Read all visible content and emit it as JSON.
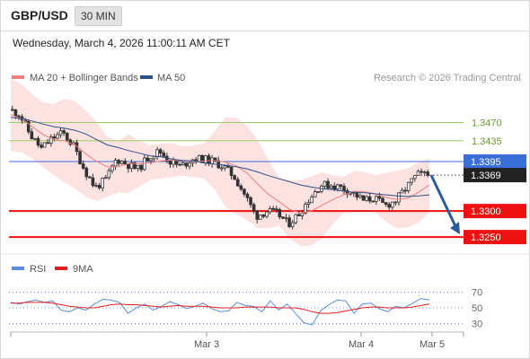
{
  "header": {
    "symbol": "GBP/USD",
    "timeframe": "30 MIN",
    "datetime": "Wednesday, March 4, 2026 11:00:11 AM CET"
  },
  "legend": {
    "ma20": "MA 20 + Bollinger Bands",
    "ma50": "MA 50",
    "credit": "Research © 2026 Trading Central",
    "rsi": "RSI",
    "rsi_ma": "9MA"
  },
  "colors": {
    "ma20": "#f08080",
    "ma50": "#2c4f86",
    "bollinger_fill": "#fde2e2",
    "candle": "#333333",
    "resistance": "#9ccc65",
    "resistance_label": "#6a9a2e",
    "pivot": "#3b6fd8",
    "support": "#ee1111",
    "current_price_bg": "#222222",
    "arrow": "#2b5b9e",
    "rsi": "#5b8dd9",
    "rsi_ma": "#e02020"
  },
  "chart_data": [
    {
      "type": "candlestick",
      "title": "GBP/USD",
      "timeframe": "30 MIN",
      "x_ticks": [
        "Mar 3",
        "Mar 4",
        "Mar 5"
      ],
      "ylim": [
        1.3233,
        1.3495
      ],
      "levels": [
        {
          "kind": "resistance",
          "value": 1.347,
          "label": "1.3470"
        },
        {
          "kind": "resistance",
          "value": 1.3435,
          "label": "1.3435"
        },
        {
          "kind": "pivot",
          "value": 1.3395,
          "label": "1.3395"
        },
        {
          "kind": "support",
          "value": 1.33,
          "label": "1.3300"
        },
        {
          "kind": "support",
          "value": 1.325,
          "label": "1.3250"
        }
      ],
      "current_price": {
        "value": 1.3369,
        "label": "1.3369"
      },
      "projection": {
        "from": 1.3369,
        "to": 1.325,
        "direction": "down"
      },
      "close_path": [
        1.3495,
        1.3485,
        1.3445,
        1.342,
        1.344,
        1.345,
        1.3425,
        1.338,
        1.3345,
        1.336,
        1.34,
        1.339,
        1.338,
        1.3405,
        1.3415,
        1.3395,
        1.3385,
        1.34,
        1.34,
        1.3395,
        1.3385,
        1.3365,
        1.333,
        1.329,
        1.33,
        1.3295,
        1.3275,
        1.3295,
        1.3325,
        1.335,
        1.335,
        1.3345,
        1.3335,
        1.332,
        1.3325,
        1.331,
        1.332,
        1.3345,
        1.337,
        1.3369
      ],
      "series": [
        {
          "name": "MA 20 + Bollinger Bands",
          "role": "ma20",
          "values": [
            1.3485,
            1.3478,
            1.3462,
            1.3447,
            1.3437,
            1.3435,
            1.3427,
            1.341,
            1.3395,
            1.3385,
            1.3385,
            1.3391,
            1.3391,
            1.3393,
            1.3396,
            1.3398,
            1.3396,
            1.3395,
            1.3396,
            1.3397,
            1.3394,
            1.3387,
            1.3373,
            1.3352,
            1.3332,
            1.3318,
            1.3303,
            1.3296,
            1.33,
            1.3311,
            1.3322,
            1.3331,
            1.3338,
            1.3337,
            1.3333,
            1.3326,
            1.3322,
            1.3325,
            1.3336,
            1.335
          ]
        },
        {
          "name": "MA 50",
          "role": "ma50",
          "values": [
            1.348,
            1.3478,
            1.3473,
            1.3467,
            1.3462,
            1.3459,
            1.3455,
            1.3448,
            1.3437,
            1.3427,
            1.3422,
            1.3416,
            1.3411,
            1.3406,
            1.3404,
            1.34,
            1.3397,
            1.3396,
            1.3393,
            1.339,
            1.3388,
            1.3385,
            1.3381,
            1.3375,
            1.3368,
            1.3362,
            1.3356,
            1.335,
            1.3346,
            1.3343,
            1.3341,
            1.3338,
            1.3336,
            1.3335,
            1.3333,
            1.3331,
            1.3329,
            1.3328,
            1.3329,
            1.3331
          ]
        }
      ]
    },
    {
      "type": "line",
      "title": "RSI",
      "x_ticks": [
        "Mar 3",
        "Mar 4",
        "Mar 5"
      ],
      "ylim": [
        20,
        80
      ],
      "y_ticks": [
        70,
        50,
        30
      ],
      "series": [
        {
          "name": "RSI",
          "role": "rsi",
          "values": [
            57,
            55,
            58,
            60,
            57,
            59,
            47,
            45,
            50,
            47,
            55,
            61,
            60,
            57,
            43,
            50,
            55,
            47,
            52,
            58,
            54,
            49,
            52,
            56,
            49,
            45,
            46,
            57,
            53,
            52,
            45,
            59,
            47,
            55,
            43,
            31,
            28,
            46,
            54,
            60,
            59,
            43,
            55,
            56,
            49,
            45,
            52,
            50,
            56,
            62,
            60
          ]
        },
        {
          "name": "9MA",
          "role": "rsi_ma",
          "values": [
            56,
            56,
            57,
            57,
            57,
            56,
            54,
            52,
            51,
            50,
            50,
            52,
            54,
            55,
            54,
            54,
            53,
            52,
            51,
            52,
            53,
            52,
            52,
            52,
            51,
            50,
            50,
            50,
            51,
            51,
            51,
            51,
            50,
            50,
            50,
            48,
            45,
            43,
            43,
            44,
            46,
            48,
            50,
            51,
            51,
            50,
            50,
            50,
            51,
            53,
            55
          ]
        }
      ]
    }
  ]
}
